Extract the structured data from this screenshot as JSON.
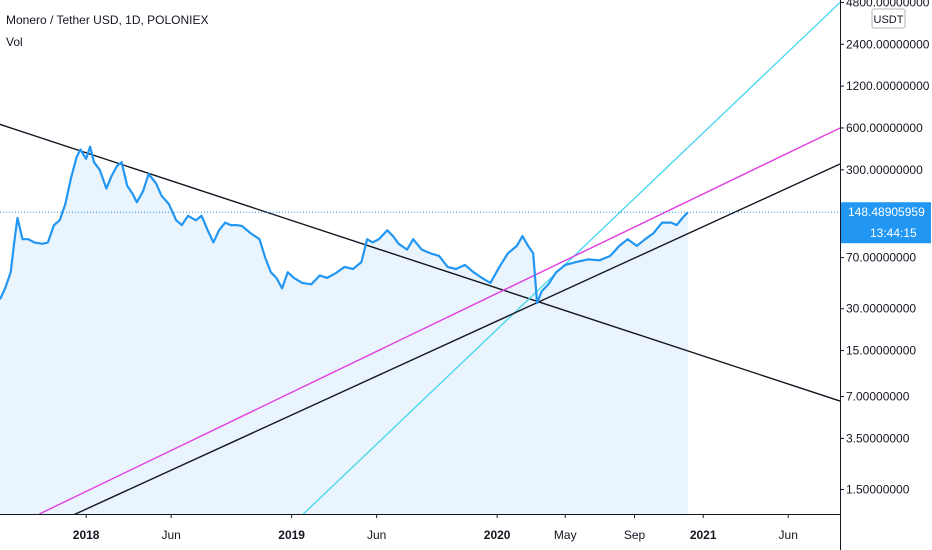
{
  "header": {
    "symbol_line": "Monero / Tether USD, 1D, POLONIEX",
    "vol_label": "Vol"
  },
  "axis": {
    "currency": "USDT",
    "price_tag": "148.48905959",
    "time_tag": "13:44:15"
  },
  "colors": {
    "price_line": "#2196f3",
    "area_fill": "#eaf4fd",
    "cyan_trend": "#4dd8f0",
    "magenta_trend": "#e040e0",
    "black_trend": "#131722",
    "price_tag_bg": "#2196f3",
    "grid": "#e0e3eb",
    "axis_text": "#131722"
  },
  "chart_data": {
    "type": "line",
    "title": "Monero / Tether USD, 1D, POLONIEX",
    "log_scale": true,
    "x_ticks": [
      "2018",
      "Jun",
      "2019",
      "Jun",
      "2020",
      "May",
      "Sep",
      "2021",
      "Jun"
    ],
    "y_ticks": [
      {
        "value": 4800,
        "label": "4800.00000000"
      },
      {
        "value": 2400,
        "label": "2400.00000000"
      },
      {
        "value": 1200,
        "label": "1200.00000000"
      },
      {
        "value": 600,
        "label": "600.00000000"
      },
      {
        "value": 300,
        "label": "300.00000000"
      },
      {
        "value": 70,
        "label": "70.00000000"
      },
      {
        "value": 30,
        "label": "30.00000000"
      },
      {
        "value": 15,
        "label": "15.00000000"
      },
      {
        "value": 7,
        "label": "7.00000000"
      },
      {
        "value": 3.5,
        "label": "3.50000000"
      },
      {
        "value": 1.5,
        "label": "1.50000000"
      }
    ],
    "x_range": [
      "2017-08-01",
      "2021-09-01"
    ],
    "last_price": 148.48905959,
    "series": [
      {
        "values": [
          [
            "2017-08-01",
            35
          ],
          [
            "2017-08-10",
            42
          ],
          [
            "2017-08-20",
            55
          ],
          [
            "2017-08-27",
            95
          ],
          [
            "2017-09-01",
            135
          ],
          [
            "2017-09-10",
            95
          ],
          [
            "2017-09-20",
            95
          ],
          [
            "2017-10-01",
            90
          ],
          [
            "2017-10-15",
            88
          ],
          [
            "2017-10-25",
            90
          ],
          [
            "2017-11-05",
            120
          ],
          [
            "2017-11-15",
            130
          ],
          [
            "2017-11-25",
            170
          ],
          [
            "2017-12-05",
            260
          ],
          [
            "2017-12-15",
            370
          ],
          [
            "2017-12-22",
            420
          ],
          [
            "2018-01-01",
            360
          ],
          [
            "2018-01-08",
            440
          ],
          [
            "2018-01-15",
            340
          ],
          [
            "2018-01-25",
            300
          ],
          [
            "2018-02-06",
            220
          ],
          [
            "2018-02-15",
            270
          ],
          [
            "2018-02-25",
            320
          ],
          [
            "2018-03-05",
            340
          ],
          [
            "2018-03-15",
            230
          ],
          [
            "2018-03-25",
            200
          ],
          [
            "2018-04-01",
            175
          ],
          [
            "2018-04-12",
            210
          ],
          [
            "2018-04-22",
            280
          ],
          [
            "2018-05-05",
            240
          ],
          [
            "2018-05-15",
            195
          ],
          [
            "2018-05-28",
            170
          ],
          [
            "2018-06-10",
            130
          ],
          [
            "2018-06-20",
            120
          ],
          [
            "2018-07-01",
            140
          ],
          [
            "2018-07-15",
            130
          ],
          [
            "2018-07-25",
            140
          ],
          [
            "2018-08-05",
            110
          ],
          [
            "2018-08-15",
            90
          ],
          [
            "2018-08-25",
            110
          ],
          [
            "2018-09-05",
            125
          ],
          [
            "2018-09-15",
            120
          ],
          [
            "2018-09-25",
            120
          ],
          [
            "2018-10-05",
            118
          ],
          [
            "2018-10-20",
            105
          ],
          [
            "2018-11-05",
            95
          ],
          [
            "2018-11-15",
            70
          ],
          [
            "2018-11-25",
            55
          ],
          [
            "2018-12-05",
            50
          ],
          [
            "2018-12-15",
            42
          ],
          [
            "2018-12-25",
            55
          ],
          [
            "2019-01-05",
            50
          ],
          [
            "2019-01-20",
            46
          ],
          [
            "2019-02-05",
            45
          ],
          [
            "2019-02-20",
            52
          ],
          [
            "2019-03-05",
            50
          ],
          [
            "2019-03-20",
            54
          ],
          [
            "2019-04-05",
            60
          ],
          [
            "2019-04-20",
            58
          ],
          [
            "2019-05-05",
            65
          ],
          [
            "2019-05-15",
            95
          ],
          [
            "2019-05-25",
            90
          ],
          [
            "2019-06-05",
            95
          ],
          [
            "2019-06-20",
            110
          ],
          [
            "2019-06-30",
            100
          ],
          [
            "2019-07-10",
            88
          ],
          [
            "2019-07-25",
            80
          ],
          [
            "2019-08-05",
            95
          ],
          [
            "2019-08-20",
            80
          ],
          [
            "2019-09-05",
            75
          ],
          [
            "2019-09-20",
            72
          ],
          [
            "2019-10-05",
            60
          ],
          [
            "2019-10-20",
            58
          ],
          [
            "2019-11-05",
            62
          ],
          [
            "2019-11-20",
            55
          ],
          [
            "2019-12-05",
            50
          ],
          [
            "2019-12-20",
            46
          ],
          [
            "2020-01-05",
            60
          ],
          [
            "2020-01-20",
            75
          ],
          [
            "2020-02-05",
            85
          ],
          [
            "2020-02-15",
            100
          ],
          [
            "2020-02-25",
            85
          ],
          [
            "2020-03-05",
            75
          ],
          [
            "2020-03-12",
            33
          ],
          [
            "2020-03-20",
            40
          ],
          [
            "2020-04-01",
            45
          ],
          [
            "2020-04-15",
            55
          ],
          [
            "2020-05-01",
            62
          ],
          [
            "2020-05-20",
            65
          ],
          [
            "2020-06-10",
            68
          ],
          [
            "2020-07-01",
            67
          ],
          [
            "2020-07-20",
            72
          ],
          [
            "2020-08-05",
            85
          ],
          [
            "2020-08-20",
            95
          ],
          [
            "2020-09-05",
            85
          ],
          [
            "2020-09-20",
            95
          ],
          [
            "2020-10-05",
            105
          ],
          [
            "2020-10-20",
            125
          ],
          [
            "2020-11-05",
            125
          ],
          [
            "2020-11-15",
            120
          ],
          [
            "2020-11-25",
            135
          ],
          [
            "2020-12-05",
            148.49
          ]
        ]
      }
    ],
    "trendlines": [
      {
        "color": "black",
        "from": [
          "2017-07-01",
          700
        ],
        "to": [
          "2021-09-01",
          6.5
        ]
      },
      {
        "color": "cyan",
        "from": [
          "2019-01-10",
          0.9
        ],
        "to": [
          "2021-09-01",
          4800
        ]
      },
      {
        "color": "magenta",
        "from": [
          "2017-10-10",
          1.0
        ],
        "to": [
          "2021-09-01",
          600
        ]
      },
      {
        "color": "black",
        "from": [
          "2017-12-01",
          0.95
        ],
        "to": [
          "2021-09-01",
          330
        ]
      }
    ]
  }
}
